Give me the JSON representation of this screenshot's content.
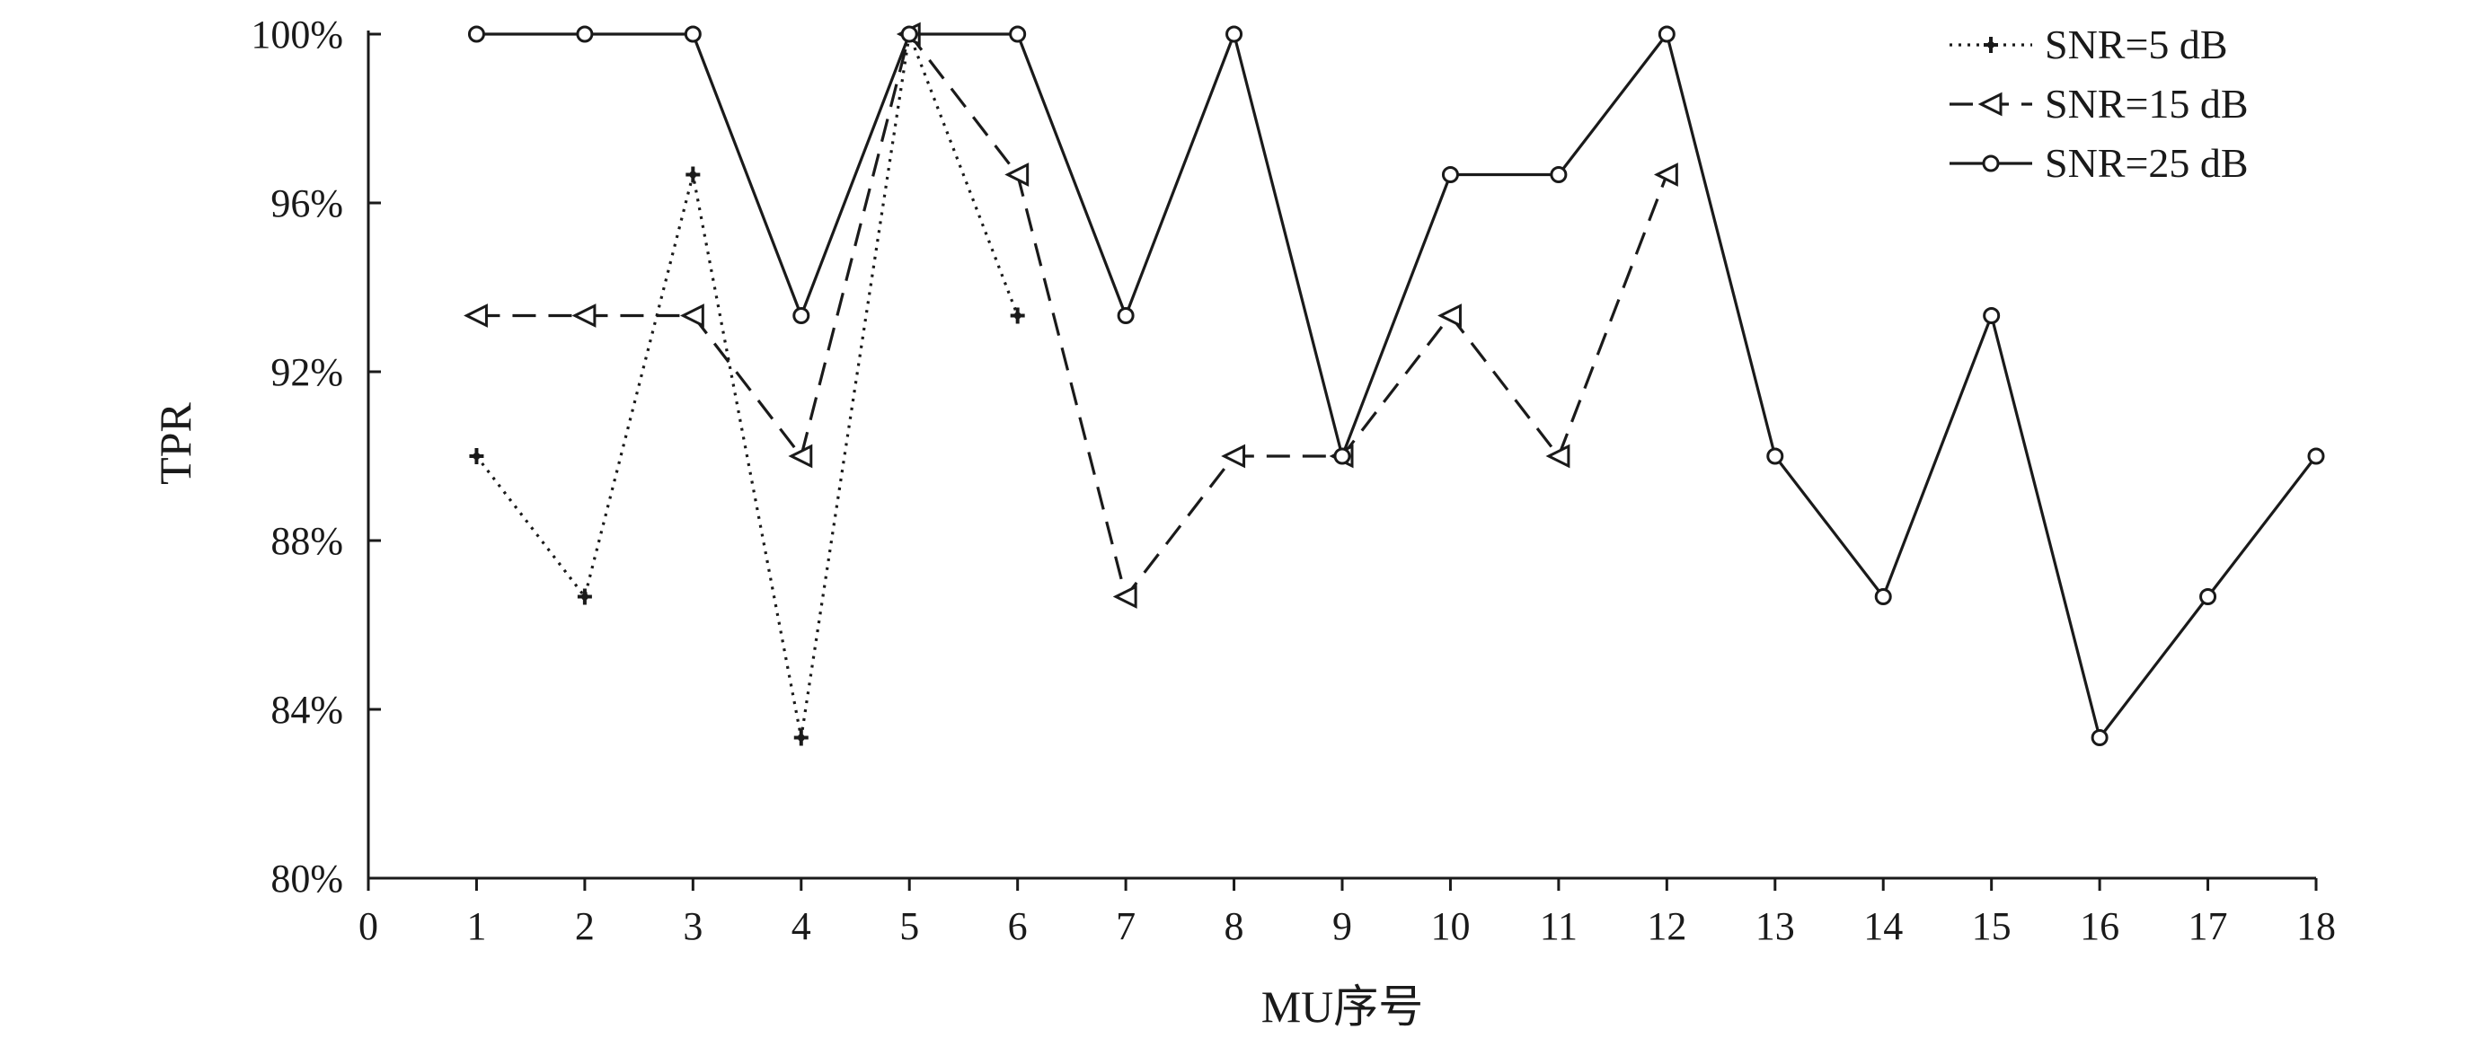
{
  "chart_data": {
    "type": "line",
    "xlabel": "MU序号",
    "ylabel": "TPR",
    "xlim": [
      0,
      18
    ],
    "ylim": [
      80,
      100
    ],
    "xticks": [
      "0",
      "1",
      "2",
      "3",
      "4",
      "5",
      "6",
      "7",
      "8",
      "9",
      "10",
      "11",
      "12",
      "13",
      "14",
      "15",
      "16",
      "17",
      "18"
    ],
    "yticks": [
      "80%",
      "84%",
      "88%",
      "92%",
      "96%",
      "100%"
    ],
    "grid": false,
    "legend_position": "top-right",
    "series": [
      {
        "name": "SNR=5 dB",
        "line_style": "dotted",
        "marker": "plus",
        "x": [
          1,
          2,
          3,
          4,
          5,
          6
        ],
        "values": [
          90,
          86.67,
          96.67,
          83.33,
          100,
          93.33
        ]
      },
      {
        "name": "SNR=15 dB",
        "line_style": "dashed",
        "marker": "triangle-left",
        "x": [
          1,
          2,
          3,
          4,
          5,
          6,
          7,
          8,
          9,
          10,
          11,
          12
        ],
        "values": [
          93.33,
          93.33,
          93.33,
          90,
          100,
          96.67,
          86.67,
          90,
          90,
          93.33,
          90,
          96.67
        ]
      },
      {
        "name": "SNR=25 dB",
        "line_style": "solid",
        "marker": "circle",
        "x": [
          1,
          2,
          3,
          4,
          5,
          6,
          7,
          8,
          9,
          10,
          11,
          12,
          13,
          14,
          15,
          16,
          17,
          18
        ],
        "values": [
          100,
          100,
          100,
          93.33,
          100,
          100,
          93.33,
          100,
          90,
          96.67,
          96.67,
          100,
          90,
          86.67,
          93.33,
          83.33,
          86.67,
          90
        ]
      }
    ]
  }
}
